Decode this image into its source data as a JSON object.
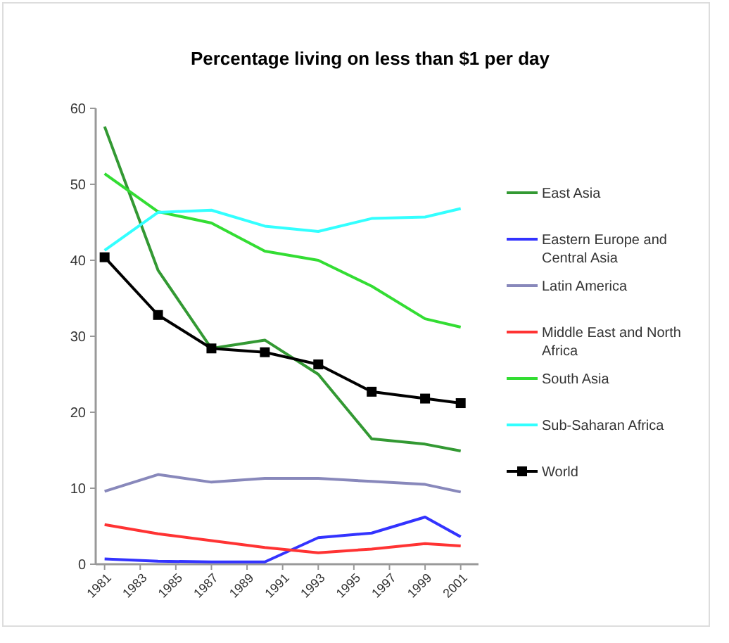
{
  "chart_data": {
    "type": "line",
    "title": "Percentage living on less than $1 per day",
    "x": [
      1981,
      1984,
      1987,
      1990,
      1993,
      1996,
      1999,
      2001
    ],
    "xlim": [
      1980.5,
      2002
    ],
    "xticks": [
      1981,
      1983,
      1985,
      1987,
      1989,
      1991,
      1993,
      1995,
      1997,
      1999,
      2001
    ],
    "ylim": [
      0,
      60
    ],
    "yticks": [
      0,
      10,
      20,
      30,
      40,
      50,
      60
    ],
    "grid": false,
    "legend": "right",
    "marker": "none",
    "series": [
      {
        "name": "East Asia",
        "color": "#339933",
        "values": [
          57.6,
          38.7,
          28.4,
          29.5,
          25,
          16.5,
          15.8,
          14.9
        ]
      },
      {
        "name": "Eastern Europe and Central Asia",
        "color": "#3333ff",
        "values": [
          0.7,
          0.4,
          0.3,
          0.3,
          3.5,
          4.1,
          6.2,
          3.6
        ]
      },
      {
        "name": "Latin America",
        "color": "#8888bb",
        "values": [
          9.6,
          11.8,
          10.8,
          11.3,
          11.3,
          10.9,
          10.5,
          9.5
        ]
      },
      {
        "name": "Middle East and North Africa",
        "color": "#ff3333",
        "values": [
          5.2,
          4,
          3.1,
          2.2,
          1.5,
          2,
          2.7,
          2.4
        ]
      },
      {
        "name": "South Asia",
        "color": "#33dd33",
        "values": [
          51.4,
          46.4,
          44.9,
          41.2,
          40,
          36.6,
          32.3,
          31.2
        ]
      },
      {
        "name": "Sub-Saharan Africa",
        "color": "#33ffff",
        "values": [
          41.3,
          46.3,
          46.6,
          44.5,
          43.8,
          45.5,
          45.7,
          46.8
        ]
      },
      {
        "name": "World",
        "color": "#000000",
        "marker": "square",
        "values": [
          40.4,
          32.8,
          28.4,
          27.9,
          26.3,
          22.7,
          21.8,
          21.2
        ]
      }
    ]
  }
}
